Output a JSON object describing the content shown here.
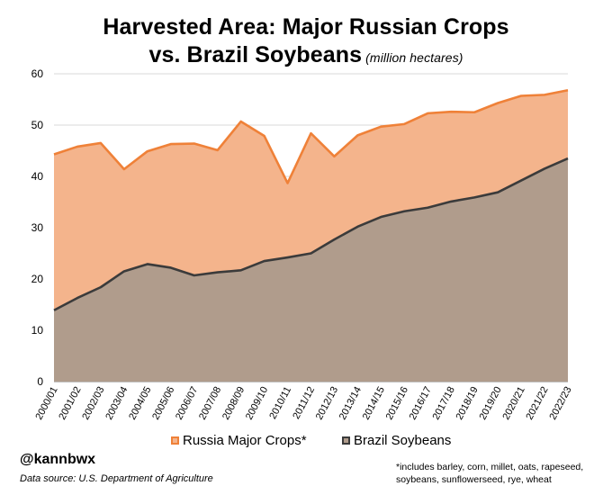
{
  "chart_data": {
    "type": "area",
    "title_line1": "Harvested Area: Major Russian Crops",
    "title_line2": "vs. Brazil Soybeans",
    "units": "(million hectares)",
    "categories": [
      "2000/01",
      "2001/02",
      "2002/03",
      "2003/04",
      "2004/05",
      "2005/06",
      "2006/07",
      "2007/08",
      "2008/09",
      "2009/10",
      "2010/11",
      "2011/12",
      "2012/13",
      "2013/14",
      "2014/15",
      "2015/16",
      "2016/17",
      "2017/18",
      "2018/19",
      "2019/20",
      "2020/21",
      "2021/22",
      "2022/23"
    ],
    "series": [
      {
        "name": "Russia Major Crops*",
        "fill": "#f4b48c",
        "line": "#ef8138",
        "values": [
          44.3,
          45.8,
          46.5,
          41.4,
          44.9,
          46.3,
          46.4,
          45.1,
          50.7,
          47.9,
          38.7,
          48.4,
          43.9,
          48.0,
          49.7,
          50.2,
          52.3,
          52.6,
          52.5,
          54.3,
          55.7,
          55.9,
          56.8
        ]
      },
      {
        "name": "Brazil Soybeans",
        "fill": "#b09c8c",
        "line": "#3b3b3b",
        "values": [
          13.9,
          16.3,
          18.4,
          21.5,
          22.9,
          22.2,
          20.7,
          21.3,
          21.7,
          23.5,
          24.2,
          25.0,
          27.7,
          30.2,
          32.1,
          33.2,
          33.9,
          35.1,
          35.9,
          36.9,
          39.2,
          41.5,
          43.5
        ]
      }
    ],
    "ylim": [
      0,
      60
    ],
    "yticks": [
      0,
      10,
      20,
      30,
      40,
      50,
      60
    ],
    "grid": true,
    "xlabel": "",
    "ylabel": ""
  },
  "legend": {
    "russia_label": "Russia Major Crops*",
    "brazil_label": "Brazil Soybeans"
  },
  "footer": {
    "handle": "@kannbwx",
    "source": "Data source: U.S. Department of Agriculture",
    "footnote_line1": "*includes barley, corn, millet, oats, rapeseed,",
    "footnote_line2": "soybeans, sunflowerseed, rye, wheat"
  },
  "colors": {
    "grid": "#d9d9d9",
    "axis": "#808080"
  }
}
